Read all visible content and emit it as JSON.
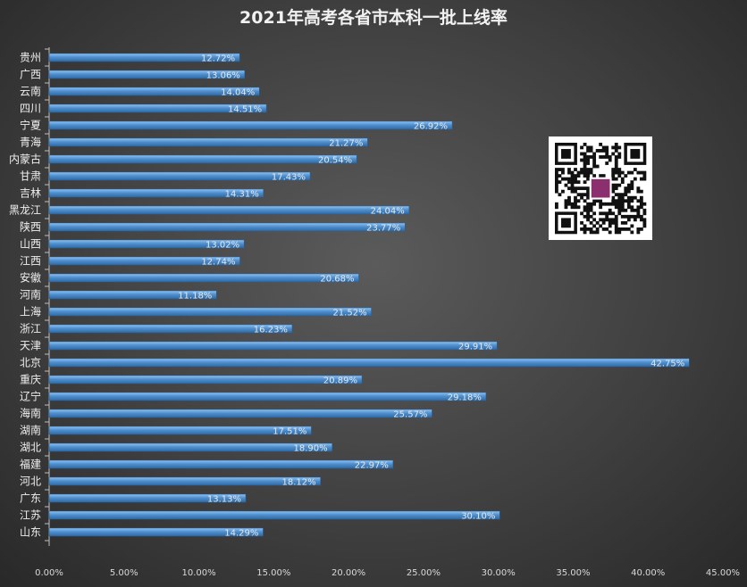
{
  "chart_data": {
    "type": "bar",
    "orientation": "horizontal",
    "title": "2021年高考各省市本科一批上线率",
    "categories": [
      "贵州",
      "广西",
      "云南",
      "四川",
      "宁夏",
      "青海",
      "内蒙古",
      "甘肃",
      "吉林",
      "黑龙江",
      "陕西",
      "山西",
      "江西",
      "安徽",
      "河南",
      "上海",
      "浙江",
      "天津",
      "北京",
      "重庆",
      "辽宁",
      "海南",
      "湖南",
      "湖北",
      "福建",
      "河北",
      "广东",
      "江苏",
      "山东"
    ],
    "values": [
      12.72,
      13.06,
      14.04,
      14.51,
      26.92,
      21.27,
      20.54,
      17.43,
      14.31,
      24.04,
      23.77,
      13.02,
      12.74,
      20.68,
      11.18,
      21.52,
      16.23,
      29.91,
      42.75,
      20.89,
      29.18,
      25.57,
      17.51,
      18.9,
      22.97,
      18.12,
      13.13,
      30.1,
      14.29
    ],
    "data_labels": [
      "12.72%",
      "13.06%",
      "14.04%",
      "14.51%",
      "26.92%",
      "21.27%",
      "20.54%",
      "17.43%",
      "14.31%",
      "24.04%",
      "23.77%",
      "13.02%",
      "12.74%",
      "20.68%",
      "11.18%",
      "21.52%",
      "16.23%",
      "29.91%",
      "42.75%",
      "20.89%",
      "29.18%",
      "25.57%",
      "17.51%",
      "18.90%",
      "22.97%",
      "18.12%",
      "13.13%",
      "30.10%",
      "14.29%"
    ],
    "xlim": [
      0,
      45
    ],
    "x_ticks": [
      "0.00%",
      "5.00%",
      "10.00%",
      "15.00%",
      "20.00%",
      "25.00%",
      "30.00%",
      "35.00%",
      "40.00%",
      "45.00%"
    ],
    "grid": false,
    "legend": "none",
    "bar_color": "#4f8fcf"
  },
  "qr_code": {
    "icon": "qr-code-icon",
    "logo_color": "#8b2f6e"
  }
}
